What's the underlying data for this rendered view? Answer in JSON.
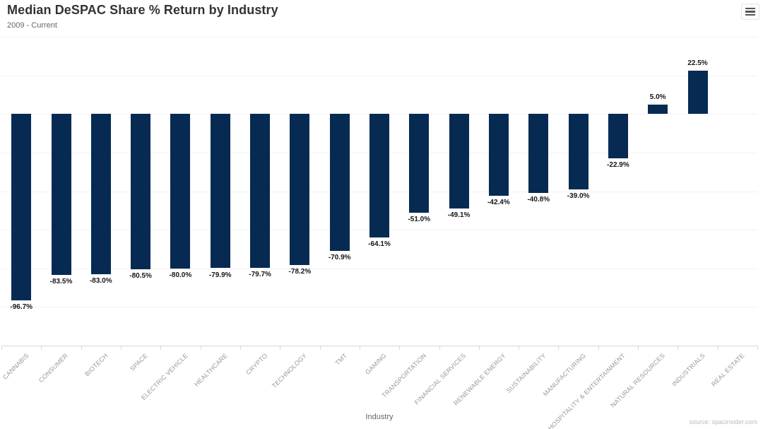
{
  "chart_data": {
    "type": "bar",
    "title": "Median DeSPAC Share % Return by Industry",
    "subtitle": "2009 - Current",
    "xlabel": "Industry",
    "ylabel": "",
    "ylim": [
      -120,
      40
    ],
    "grid": true,
    "grid_step": 20,
    "legend": "none",
    "bar_color": "#062a52",
    "categories": [
      "CANNABIS",
      "CONSUMER",
      "BIOTECH",
      "SPACE",
      "ELECTRIC VEHICLE",
      "HEALTHCARE",
      "CRYPTO",
      "TECHNOLOGY",
      "TMT",
      "GAMING",
      "TRANSPORTATION",
      "FINANCIAL SERVICES",
      "RENEWABLE ENERGY",
      "SUSTAINABILITY",
      "MANUFACTURING",
      "HOSPITALITY & ENTERTAINMENT",
      "NATURAL RESOURCES",
      "INDUSTRIALS",
      "REAL ESTATE"
    ],
    "values": [
      -96.7,
      -83.5,
      -83.0,
      -80.5,
      -80.0,
      -79.9,
      -79.7,
      -78.2,
      -70.9,
      -64.1,
      -51.0,
      -49.1,
      -42.4,
      -40.8,
      -39.0,
      -22.9,
      5.0,
      22.5,
      null
    ],
    "labels": [
      "-96.7%",
      "-83.5%",
      "-83.0%",
      "-80.5%",
      "-80.0%",
      "-79.9%",
      "-79.7%",
      "-78.2%",
      "-70.9%",
      "-64.1%",
      "-51.0%",
      "-49.1%",
      "-42.4%",
      "-40.8%",
      "-39.0%",
      "-22.9%",
      "5.0%",
      "22.5%",
      ""
    ]
  },
  "icons": {
    "context_menu": "hamburger-menu-icon"
  },
  "footer": {
    "source": "source: spacinsider.com"
  },
  "colors": {
    "bar": "#062a52",
    "gridline": "#f2f2f2",
    "axis_line": "#d8d8d8",
    "axis_label": "#999999",
    "data_label": "#161616"
  }
}
